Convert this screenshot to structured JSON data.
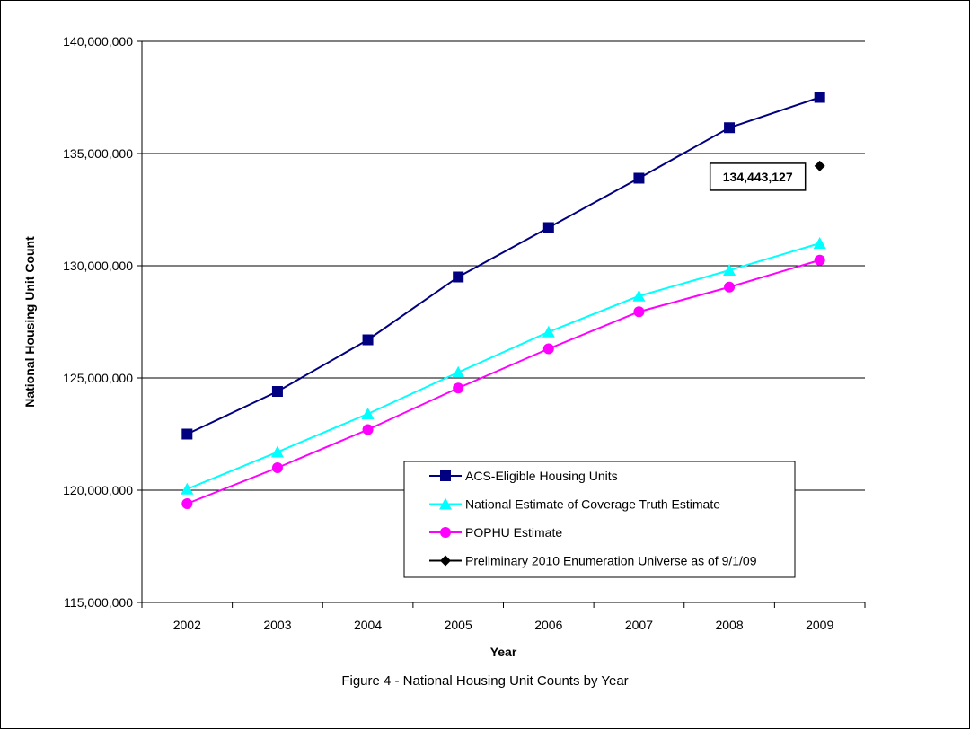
{
  "figure_caption": "Figure 4 - National Housing Unit Counts by Year",
  "chart_data": {
    "type": "line",
    "title": "",
    "xlabel": "Year",
    "ylabel": "National Housing Unit Count",
    "categories": [
      "2002",
      "2003",
      "2004",
      "2005",
      "2006",
      "2007",
      "2008",
      "2009"
    ],
    "ylim": [
      115000000,
      140000000
    ],
    "yticks": [
      115000000,
      120000000,
      125000000,
      130000000,
      135000000,
      140000000
    ],
    "ytick_labels": [
      "115,000,000",
      "120,000,000",
      "125,000,000",
      "130,000,000",
      "135,000,000",
      "140,000,000"
    ],
    "grid": true,
    "legend_position": "lower-right",
    "series": [
      {
        "name": "ACS-Eligible Housing Units",
        "color": "#000080",
        "marker": "square",
        "values": [
          122500000,
          124400000,
          126700000,
          129500000,
          131700000,
          133900000,
          136150000,
          137500000
        ]
      },
      {
        "name": "National Estimate of Coverage Truth Estimate",
        "color": "#00FFFF",
        "marker": "triangle",
        "values": [
          120050000,
          121700000,
          123400000,
          125250000,
          127050000,
          128650000,
          129800000,
          131000000
        ]
      },
      {
        "name": "POPHU Estimate",
        "color": "#FF00FF",
        "marker": "circle",
        "values": [
          119400000,
          121000000,
          122700000,
          124550000,
          126300000,
          127950000,
          129050000,
          130250000
        ]
      },
      {
        "name": "Preliminary 2010 Enumeration Universe as of 9/1/09",
        "color": "#000000",
        "marker": "diamond",
        "points": [
          {
            "x": "2009",
            "y": 134443127
          }
        ]
      }
    ],
    "annotations": [
      {
        "text": "134,443,127",
        "x": "2009",
        "y": 134443127
      }
    ]
  }
}
